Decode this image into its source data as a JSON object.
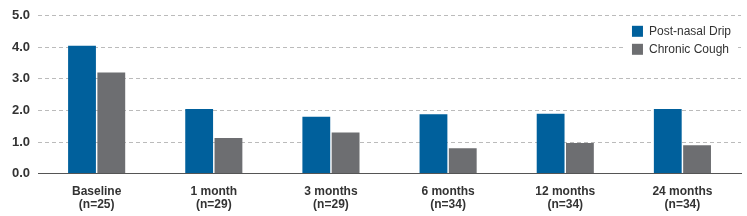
{
  "chart_data": {
    "type": "bar",
    "categories": [
      [
        "Baseline",
        "(n=25)"
      ],
      [
        "1 month",
        "(n=29)"
      ],
      [
        "3 months",
        "(n=29)"
      ],
      [
        "6 months",
        "(n=34)"
      ],
      [
        "12 months",
        "(n=34)"
      ],
      [
        "24 months",
        "(n=34)"
      ]
    ],
    "series": [
      {
        "name": "Post-nasal Drip",
        "color": "#00609c",
        "values": [
          4.05,
          2.05,
          1.8,
          1.88,
          1.9,
          2.05
        ]
      },
      {
        "name": "Chronic Cough",
        "color": "#6d6e71",
        "values": [
          3.2,
          1.13,
          1.3,
          0.8,
          0.97,
          0.9
        ]
      }
    ],
    "ylim": [
      0,
      5
    ],
    "yticks": [
      {
        "value": 0,
        "label": "0.0"
      },
      {
        "value": 1,
        "label": "1.0"
      },
      {
        "value": 2,
        "label": "2.0"
      },
      {
        "value": 3,
        "label": "3.0"
      },
      {
        "value": 4,
        "label": "4.0"
      },
      {
        "value": 5,
        "label": "5.0"
      }
    ],
    "grid": true,
    "legend": "upper right"
  }
}
